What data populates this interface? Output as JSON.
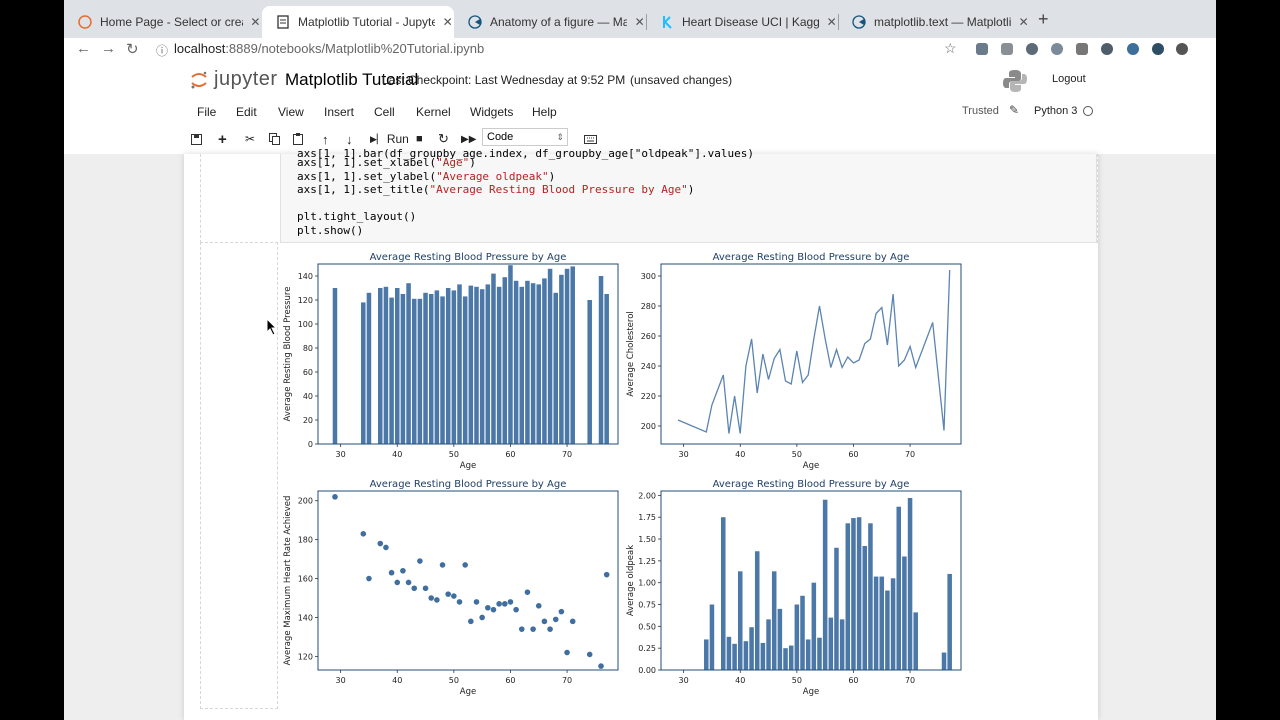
{
  "browser": {
    "tabs": [
      {
        "label": "Home Page - Select or create",
        "active": false
      },
      {
        "label": "Matplotlib Tutorial - Jupyter N",
        "active": true
      },
      {
        "label": "Anatomy of a figure — Matplot",
        "active": false
      },
      {
        "label": "Heart Disease UCI | Kaggle",
        "active": false
      },
      {
        "label": "matplotlib.text — Matplotlib 3",
        "active": false
      }
    ],
    "url_host": "localhost",
    "url_path": ":8889/notebooks/Matplotlib%20Tutorial.ipynb"
  },
  "jupyter": {
    "logo_text": "jupyter",
    "notebook_title": "Matplotlib Tutorial",
    "checkpoint": "Last Checkpoint: Last Wednesday at 9:52 PM",
    "unsaved": "(unsaved changes)",
    "logout": "Logout",
    "menu": [
      "File",
      "Edit",
      "View",
      "Insert",
      "Cell",
      "Kernel",
      "Widgets",
      "Help"
    ],
    "trusted": "Trusted",
    "kernel": "Python 3",
    "run_label": "Run",
    "cell_type": "Code"
  },
  "code_lines": [
    {
      "prefix": "axs[1, 1].set_xlabel(",
      "str": "\"Age\"",
      "suffix": ")"
    },
    {
      "prefix": "axs[1, 1].set_ylabel(",
      "str": "\"Average oldpeak\"",
      "suffix": ")"
    },
    {
      "prefix": "axs[1, 1].set_title(",
      "str": "\"Average Resting Blood Pressure by Age\"",
      "suffix": ")"
    },
    {
      "prefix": "",
      "str": "",
      "suffix": ""
    },
    {
      "prefix": "plt.tight_layout()",
      "str": "",
      "suffix": ""
    },
    {
      "prefix": "plt.show()",
      "str": "",
      "suffix": ""
    }
  ],
  "colors": {
    "bar": "#4c78a8",
    "line": "#5b84b1",
    "point": "#3f6e9f"
  },
  "chart_data": [
    {
      "type": "bar",
      "title": "Average Resting Blood Pressure by Age",
      "xlabel": "Age",
      "ylabel": "Average Resting Blood Pressure",
      "xlim": [
        26,
        79
      ],
      "ylim": [
        0,
        150
      ],
      "xticks": [
        30,
        40,
        50,
        60,
        70
      ],
      "yticks": [
        0,
        20,
        40,
        60,
        80,
        100,
        120,
        140
      ],
      "x": [
        29,
        34,
        35,
        37,
        38,
        39,
        40,
        41,
        42,
        43,
        44,
        45,
        46,
        47,
        48,
        49,
        50,
        51,
        52,
        53,
        54,
        55,
        56,
        57,
        58,
        59,
        60,
        61,
        62,
        63,
        64,
        65,
        66,
        67,
        68,
        69,
        70,
        71,
        74,
        76,
        77
      ],
      "y": [
        130,
        118,
        126,
        130,
        131,
        122,
        130,
        125,
        134,
        121,
        121,
        126,
        125,
        128,
        123,
        130,
        128,
        133,
        123,
        132,
        131,
        129,
        133,
        142,
        131,
        139,
        149,
        136,
        131,
        136,
        134,
        133,
        138,
        146,
        126,
        141,
        146,
        148,
        120,
        140,
        125
      ]
    },
    {
      "type": "line",
      "title": "Average Resting Blood Pressure by Age",
      "xlabel": "Age",
      "ylabel": "Average Cholesterol",
      "xlim": [
        26,
        79
      ],
      "ylim": [
        188,
        308
      ],
      "xticks": [
        30,
        40,
        50,
        60,
        70
      ],
      "yticks": [
        200,
        220,
        240,
        260,
        280,
        300
      ],
      "x": [
        29,
        34,
        35,
        37,
        38,
        39,
        40,
        41,
        42,
        43,
        44,
        45,
        46,
        47,
        48,
        49,
        50,
        51,
        52,
        53,
        54,
        55,
        56,
        57,
        58,
        59,
        60,
        61,
        62,
        63,
        64,
        65,
        66,
        67,
        68,
        69,
        70,
        71,
        74,
        76,
        77
      ],
      "y": [
        204,
        196,
        214,
        234,
        195,
        220,
        195,
        240,
        258,
        222,
        248,
        231,
        245,
        251,
        230,
        228,
        250,
        229,
        234,
        258,
        280,
        258,
        239,
        251,
        239,
        246,
        242,
        244,
        255,
        258,
        275,
        279,
        254,
        288,
        240,
        244,
        253,
        239,
        269,
        197,
        304
      ]
    },
    {
      "type": "scatter",
      "title": "Average Resting Blood Pressure by Age",
      "xlabel": "Age",
      "ylabel": "Average Maximum Heart Rate Achieved",
      "xlim": [
        26,
        79
      ],
      "ylim": [
        113,
        205
      ],
      "xticks": [
        30,
        40,
        50,
        60,
        70
      ],
      "yticks": [
        120,
        140,
        160,
        180,
        200
      ],
      "x": [
        29,
        34,
        35,
        37,
        38,
        39,
        40,
        41,
        42,
        43,
        44,
        45,
        46,
        47,
        48,
        49,
        50,
        51,
        52,
        53,
        54,
        55,
        56,
        57,
        58,
        59,
        60,
        61,
        62,
        63,
        64,
        65,
        66,
        67,
        68,
        69,
        70,
        71,
        74,
        76,
        77
      ],
      "y": [
        202,
        183,
        160,
        178,
        176,
        163,
        158,
        164,
        158,
        155,
        169,
        155,
        150,
        149,
        167,
        152,
        151,
        148,
        167,
        138,
        148,
        140,
        145,
        144,
        147,
        147,
        148,
        144,
        134,
        153,
        134,
        146,
        138,
        134,
        139,
        143,
        122,
        138,
        121,
        115,
        162
      ]
    },
    {
      "type": "bar",
      "title": "Average Resting Blood Pressure by Age",
      "xlabel": "Age",
      "ylabel": "Average oldpeak",
      "xlim": [
        26,
        79
      ],
      "ylim": [
        0,
        2.05
      ],
      "xticks": [
        30,
        40,
        50,
        60,
        70
      ],
      "yticks": [
        0.0,
        0.25,
        0.5,
        0.75,
        1.0,
        1.25,
        1.5,
        1.75,
        2.0
      ],
      "yformat": 2,
      "x": [
        29,
        34,
        35,
        37,
        38,
        39,
        40,
        41,
        42,
        43,
        44,
        45,
        46,
        47,
        48,
        49,
        50,
        51,
        52,
        53,
        54,
        55,
        56,
        57,
        58,
        59,
        60,
        61,
        62,
        63,
        64,
        65,
        66,
        67,
        68,
        69,
        70,
        71,
        74,
        76,
        77
      ],
      "y": [
        0,
        0.35,
        0.75,
        1.75,
        0.38,
        0.3,
        1.13,
        0.33,
        0.49,
        1.36,
        0.31,
        0.58,
        1.13,
        0.7,
        0.25,
        0.28,
        0.75,
        0.85,
        0.35,
        1.0,
        0.37,
        1.95,
        0.6,
        1.4,
        0.58,
        1.68,
        1.74,
        1.75,
        1.42,
        1.68,
        1.07,
        1.07,
        0.91,
        1.05,
        1.87,
        1.3,
        1.97,
        0.66,
        0,
        0.2,
        1.1
      ]
    }
  ]
}
